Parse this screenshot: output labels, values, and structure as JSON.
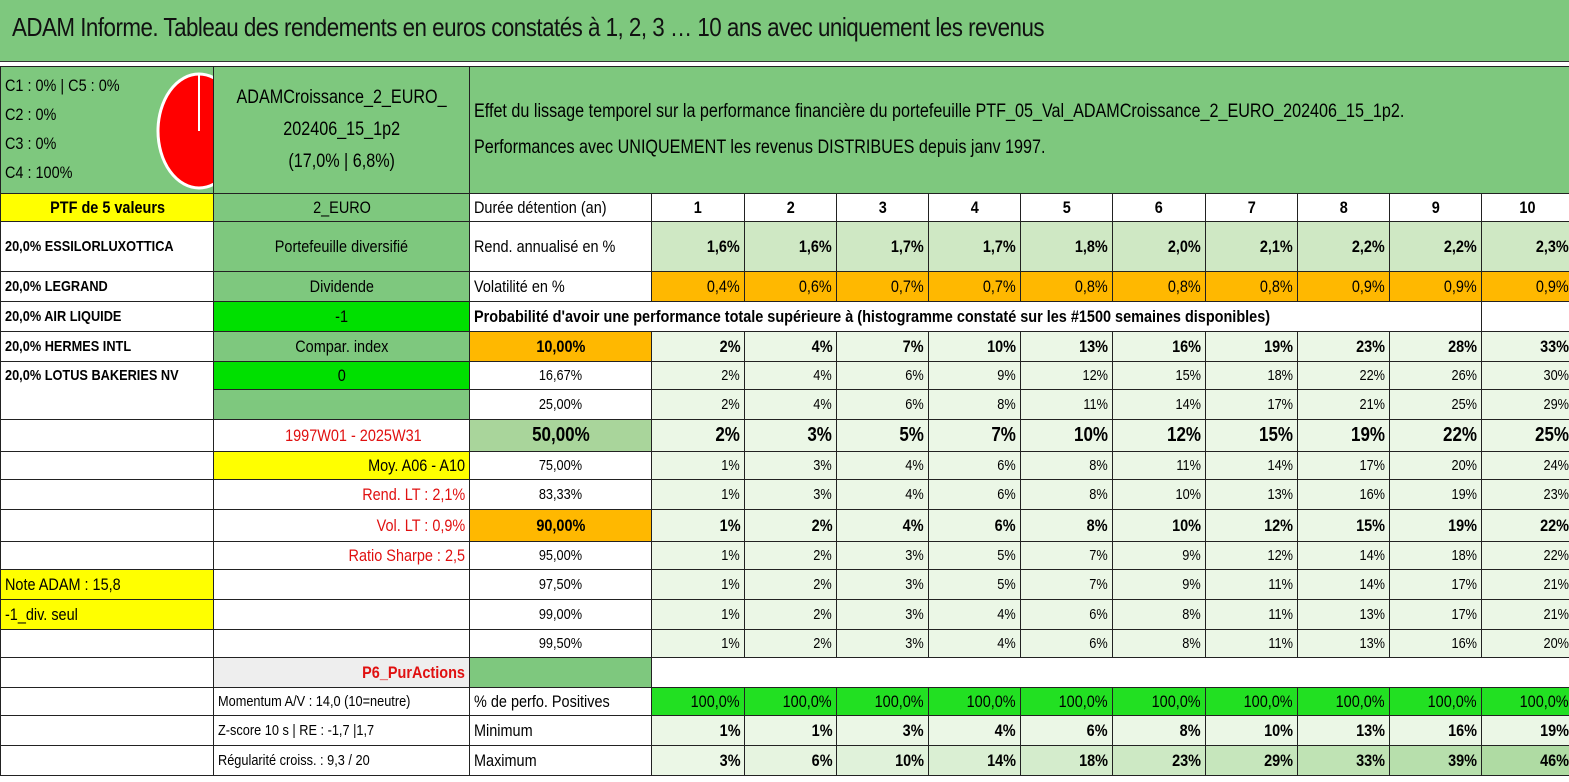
{
  "title": "ADAM Informe. Tableau des rendements en euros constatés à 1, 2, 3 … 10 ans avec uniquement les revenus",
  "allocation": [
    "C1 : 0% | C5 : 0%",
    "C2 : 0%",
    "C3 : 0%",
    "C4 : 100%"
  ],
  "pie_color": "#ff0000",
  "portfolio": {
    "name_l1": "ADAMCroissance_2_EURO_",
    "name_l2": "202406_15_1p2",
    "name_l3": "(17,0% | 6,8%)"
  },
  "description": {
    "line1": "Effet du lissage temporel sur la performance financière du portefeuille PTF_05_Val_ADAMCroissance_2_EURO_202406_15_1p2.",
    "line2": "Performances avec UNIQUEMENT les revenus DISTRIBUES depuis janv 1997."
  },
  "col_a": {
    "header": "PTF de 5 valeurs",
    "holdings": [
      "20,0% ESSILORLUXOTTICA",
      "20,0% LEGRAND",
      "20,0% AIR LIQUIDE",
      "20,0% HERMES INTL",
      "20,0% LOTUS BAKERIES NV"
    ],
    "note": "Note ADAM : 15,8",
    "div": "-1_div. seul"
  },
  "col_b": {
    "currency": "2_EURO",
    "type": "Portefeuille diversifié",
    "dividend": "Dividende",
    "div_value": "-1",
    "compar": "Compar. index",
    "compar_value": "0",
    "period": "1997W01 - 2025W31",
    "moy": "Moy. A06 - A10",
    "rend_lt": "Rend. LT : 2,1%",
    "vol_lt": "Vol. LT : 0,9%",
    "sharpe": "Ratio Sharpe : 2,5",
    "category": "P6_PurActions",
    "momentum": "Momentum A/V : 14,0 (10=neutre)",
    "zscore": "Z-score 10 s | RE : -1,7 |1,7",
    "regularity": "Régularité croiss. : 9,3 / 20"
  },
  "stats": {
    "duration_label": "Durée détention (an)",
    "years": [
      "1",
      "2",
      "3",
      "4",
      "5",
      "6",
      "7",
      "8",
      "9",
      "10"
    ],
    "rend_label": "Rend. annualisé en %",
    "rend": [
      "1,6%",
      "1,6%",
      "1,7%",
      "1,7%",
      "1,8%",
      "2,0%",
      "2,1%",
      "2,2%",
      "2,2%",
      "2,3%"
    ],
    "vol_label": "Volatilité en %",
    "vol": [
      "0,4%",
      "0,6%",
      "0,7%",
      "0,7%",
      "0,8%",
      "0,8%",
      "0,8%",
      "0,9%",
      "0,9%",
      "0,9%"
    ],
    "prob_title": "Probabilité d'avoir une performance totale supérieure à (histogramme constaté sur les #1500 semaines disponibles)",
    "prob_rows": [
      {
        "label": "10,00%",
        "values": [
          "2%",
          "4%",
          "7%",
          "10%",
          "13%",
          "16%",
          "19%",
          "23%",
          "28%",
          "33%"
        ]
      },
      {
        "label": "16,67%",
        "values": [
          "2%",
          "4%",
          "6%",
          "9%",
          "12%",
          "15%",
          "18%",
          "22%",
          "26%",
          "30%"
        ]
      },
      {
        "label": "25,00%",
        "values": [
          "2%",
          "4%",
          "6%",
          "8%",
          "11%",
          "14%",
          "17%",
          "21%",
          "25%",
          "29%"
        ]
      },
      {
        "label": "50,00%",
        "values": [
          "2%",
          "3%",
          "5%",
          "7%",
          "10%",
          "12%",
          "15%",
          "19%",
          "22%",
          "25%"
        ]
      },
      {
        "label": "75,00%",
        "values": [
          "1%",
          "3%",
          "4%",
          "6%",
          "8%",
          "11%",
          "14%",
          "17%",
          "20%",
          "24%"
        ]
      },
      {
        "label": "83,33%",
        "values": [
          "1%",
          "3%",
          "4%",
          "6%",
          "8%",
          "10%",
          "13%",
          "16%",
          "19%",
          "23%"
        ]
      },
      {
        "label": "90,00%",
        "values": [
          "1%",
          "2%",
          "4%",
          "6%",
          "8%",
          "10%",
          "12%",
          "15%",
          "19%",
          "22%"
        ]
      },
      {
        "label": "95,00%",
        "values": [
          "1%",
          "2%",
          "3%",
          "5%",
          "7%",
          "9%",
          "12%",
          "14%",
          "18%",
          "22%"
        ]
      },
      {
        "label": "97,50%",
        "values": [
          "1%",
          "2%",
          "3%",
          "5%",
          "7%",
          "9%",
          "11%",
          "14%",
          "17%",
          "21%"
        ]
      },
      {
        "label": "99,00%",
        "values": [
          "1%",
          "2%",
          "3%",
          "4%",
          "6%",
          "8%",
          "11%",
          "13%",
          "17%",
          "21%"
        ]
      },
      {
        "label": "99,50%",
        "values": [
          "1%",
          "2%",
          "3%",
          "4%",
          "6%",
          "8%",
          "11%",
          "13%",
          "16%",
          "20%"
        ]
      }
    ],
    "pos_label": "% de perfo. Positives",
    "pos": [
      "100,0%",
      "100,0%",
      "100,0%",
      "100,0%",
      "100,0%",
      "100,0%",
      "100,0%",
      "100,0%",
      "100,0%",
      "100,0%"
    ],
    "min_label": "Minimum",
    "min": [
      "1%",
      "1%",
      "3%",
      "4%",
      "6%",
      "8%",
      "10%",
      "13%",
      "16%",
      "19%"
    ],
    "max_label": "Maximum",
    "max": [
      "3%",
      "6%",
      "10%",
      "14%",
      "18%",
      "23%",
      "29%",
      "33%",
      "39%",
      "46%"
    ]
  }
}
